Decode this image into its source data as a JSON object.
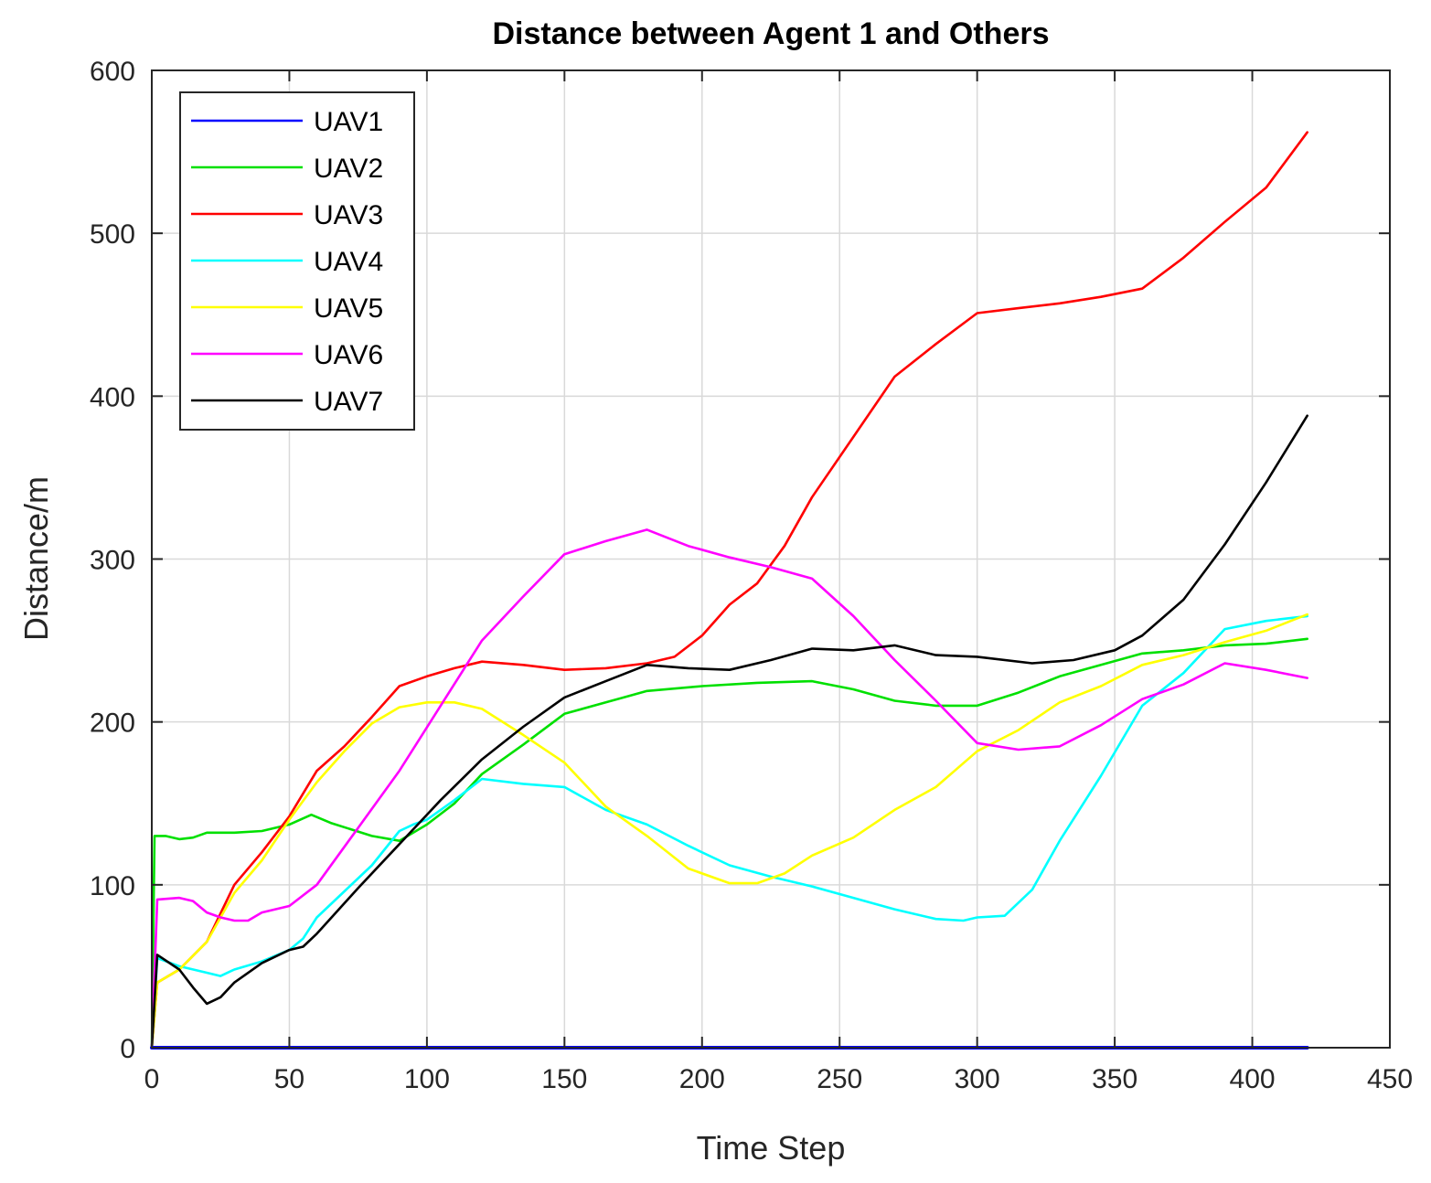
{
  "chart_data": {
    "type": "line",
    "title": "Distance between Agent 1 and Others",
    "xlabel": "Time Step",
    "ylabel": "Distance/m",
    "xlim": [
      0,
      450
    ],
    "ylim": [
      0,
      600
    ],
    "xticks": [
      "0",
      "50",
      "100",
      "150",
      "200",
      "250",
      "300",
      "350",
      "400",
      "450"
    ],
    "yticks": [
      "0",
      "100",
      "200",
      "300",
      "400",
      "500",
      "600"
    ],
    "grid": true,
    "legend_position": "top-left",
    "series": [
      {
        "name": "UAV1",
        "color": "#0000ff",
        "points": [
          [
            0,
            0
          ],
          [
            420,
            0
          ]
        ]
      },
      {
        "name": "UAV2",
        "color": "#00e000",
        "points": [
          [
            0,
            0
          ],
          [
            1,
            130
          ],
          [
            5,
            130
          ],
          [
            10,
            128
          ],
          [
            15,
            129
          ],
          [
            20,
            132
          ],
          [
            30,
            132
          ],
          [
            40,
            133
          ],
          [
            50,
            137
          ],
          [
            58,
            143
          ],
          [
            65,
            138
          ],
          [
            80,
            130
          ],
          [
            90,
            127
          ],
          [
            100,
            137
          ],
          [
            110,
            150
          ],
          [
            120,
            168
          ],
          [
            135,
            186
          ],
          [
            150,
            205
          ],
          [
            165,
            212
          ],
          [
            180,
            219
          ],
          [
            200,
            222
          ],
          [
            220,
            224
          ],
          [
            240,
            225
          ],
          [
            255,
            220
          ],
          [
            270,
            213
          ],
          [
            285,
            210
          ],
          [
            300,
            210
          ],
          [
            315,
            218
          ],
          [
            330,
            228
          ],
          [
            345,
            235
          ],
          [
            360,
            242
          ],
          [
            375,
            244
          ],
          [
            390,
            247
          ],
          [
            405,
            248
          ],
          [
            420,
            251
          ]
        ]
      },
      {
        "name": "UAV3",
        "color": "#ff0000",
        "points": [
          [
            0,
            0
          ],
          [
            2,
            40
          ],
          [
            10,
            48
          ],
          [
            20,
            65
          ],
          [
            30,
            100
          ],
          [
            40,
            120
          ],
          [
            50,
            142
          ],
          [
            60,
            170
          ],
          [
            70,
            185
          ],
          [
            80,
            203
          ],
          [
            90,
            222
          ],
          [
            100,
            228
          ],
          [
            110,
            233
          ],
          [
            120,
            237
          ],
          [
            135,
            235
          ],
          [
            150,
            232
          ],
          [
            165,
            233
          ],
          [
            180,
            236
          ],
          [
            190,
            240
          ],
          [
            200,
            253
          ],
          [
            210,
            272
          ],
          [
            220,
            285
          ],
          [
            230,
            308
          ],
          [
            240,
            338
          ],
          [
            255,
            375
          ],
          [
            270,
            412
          ],
          [
            285,
            432
          ],
          [
            300,
            451
          ],
          [
            315,
            454
          ],
          [
            330,
            457
          ],
          [
            345,
            461
          ],
          [
            360,
            466
          ],
          [
            375,
            485
          ],
          [
            390,
            507
          ],
          [
            405,
            528
          ],
          [
            420,
            562
          ]
        ]
      },
      {
        "name": "UAV4",
        "color": "#00ffff",
        "points": [
          [
            0,
            0
          ],
          [
            2,
            55
          ],
          [
            10,
            50
          ],
          [
            20,
            46
          ],
          [
            25,
            44
          ],
          [
            30,
            48
          ],
          [
            40,
            53
          ],
          [
            50,
            60
          ],
          [
            55,
            67
          ],
          [
            60,
            80
          ],
          [
            70,
            96
          ],
          [
            80,
            112
          ],
          [
            90,
            133
          ],
          [
            95,
            137
          ],
          [
            100,
            140
          ],
          [
            110,
            152
          ],
          [
            120,
            165
          ],
          [
            135,
            162
          ],
          [
            150,
            160
          ],
          [
            165,
            146
          ],
          [
            180,
            137
          ],
          [
            195,
            124
          ],
          [
            210,
            112
          ],
          [
            225,
            105
          ],
          [
            240,
            99
          ],
          [
            255,
            92
          ],
          [
            270,
            85
          ],
          [
            285,
            79
          ],
          [
            295,
            78
          ],
          [
            300,
            80
          ],
          [
            310,
            81
          ],
          [
            320,
            97
          ],
          [
            330,
            127
          ],
          [
            345,
            167
          ],
          [
            360,
            210
          ],
          [
            375,
            230
          ],
          [
            390,
            257
          ],
          [
            405,
            262
          ],
          [
            420,
            265
          ]
        ]
      },
      {
        "name": "UAV5",
        "color": "#ffff00",
        "points": [
          [
            0,
            0
          ],
          [
            2,
            40
          ],
          [
            10,
            48
          ],
          [
            20,
            65
          ],
          [
            30,
            95
          ],
          [
            40,
            115
          ],
          [
            50,
            140
          ],
          [
            60,
            163
          ],
          [
            70,
            182
          ],
          [
            80,
            199
          ],
          [
            90,
            209
          ],
          [
            100,
            212
          ],
          [
            110,
            212
          ],
          [
            120,
            208
          ],
          [
            135,
            192
          ],
          [
            150,
            175
          ],
          [
            165,
            148
          ],
          [
            180,
            130
          ],
          [
            195,
            110
          ],
          [
            210,
            101
          ],
          [
            220,
            101
          ],
          [
            230,
            107
          ],
          [
            240,
            118
          ],
          [
            255,
            129
          ],
          [
            270,
            146
          ],
          [
            285,
            160
          ],
          [
            300,
            182
          ],
          [
            315,
            195
          ],
          [
            330,
            212
          ],
          [
            345,
            222
          ],
          [
            360,
            235
          ],
          [
            375,
            241
          ],
          [
            390,
            249
          ],
          [
            405,
            256
          ],
          [
            420,
            266
          ]
        ]
      },
      {
        "name": "UAV6",
        "color": "#ff00ff",
        "points": [
          [
            0,
            0
          ],
          [
            2,
            91
          ],
          [
            10,
            92
          ],
          [
            15,
            90
          ],
          [
            20,
            83
          ],
          [
            25,
            80
          ],
          [
            30,
            78
          ],
          [
            35,
            78
          ],
          [
            40,
            83
          ],
          [
            50,
            87
          ],
          [
            60,
            100
          ],
          [
            75,
            135
          ],
          [
            90,
            170
          ],
          [
            105,
            210
          ],
          [
            120,
            250
          ],
          [
            135,
            277
          ],
          [
            150,
            303
          ],
          [
            165,
            311
          ],
          [
            180,
            318
          ],
          [
            195,
            308
          ],
          [
            210,
            301
          ],
          [
            225,
            295
          ],
          [
            240,
            288
          ],
          [
            255,
            265
          ],
          [
            270,
            238
          ],
          [
            285,
            213
          ],
          [
            300,
            187
          ],
          [
            315,
            183
          ],
          [
            330,
            185
          ],
          [
            345,
            198
          ],
          [
            360,
            214
          ],
          [
            375,
            223
          ],
          [
            390,
            236
          ],
          [
            405,
            232
          ],
          [
            420,
            227
          ]
        ]
      },
      {
        "name": "UAV7",
        "color": "#000000",
        "points": [
          [
            0,
            0
          ],
          [
            2,
            57
          ],
          [
            10,
            48
          ],
          [
            15,
            37
          ],
          [
            20,
            27
          ],
          [
            25,
            31
          ],
          [
            30,
            40
          ],
          [
            40,
            52
          ],
          [
            50,
            60
          ],
          [
            55,
            62
          ],
          [
            60,
            70
          ],
          [
            75,
            98
          ],
          [
            90,
            125
          ],
          [
            105,
            152
          ],
          [
            120,
            177
          ],
          [
            135,
            197
          ],
          [
            150,
            215
          ],
          [
            165,
            225
          ],
          [
            180,
            235
          ],
          [
            195,
            233
          ],
          [
            210,
            232
          ],
          [
            225,
            238
          ],
          [
            240,
            245
          ],
          [
            255,
            244
          ],
          [
            270,
            247
          ],
          [
            285,
            241
          ],
          [
            300,
            240
          ],
          [
            320,
            236
          ],
          [
            335,
            238
          ],
          [
            350,
            244
          ],
          [
            360,
            253
          ],
          [
            375,
            275
          ],
          [
            390,
            309
          ],
          [
            405,
            347
          ],
          [
            420,
            388
          ]
        ]
      }
    ]
  }
}
